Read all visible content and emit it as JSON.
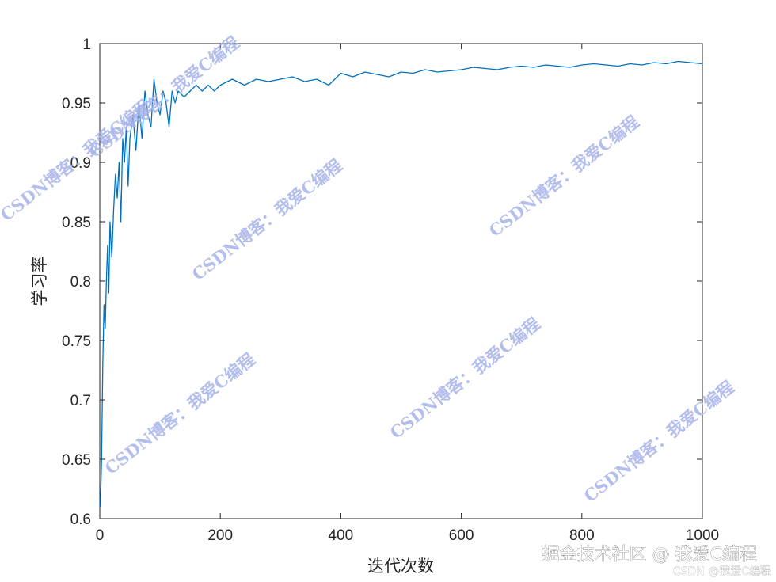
{
  "chart_data": {
    "type": "line",
    "title": "",
    "xlabel": "迭代次数",
    "ylabel": "学习率",
    "xlim": [
      0,
      1000
    ],
    "ylim": [
      0.6,
      1
    ],
    "xticks": [
      0,
      200,
      400,
      600,
      800,
      1000
    ],
    "yticks": [
      0.6,
      0.65,
      0.7,
      0.75,
      0.8,
      0.85,
      0.9,
      0.95,
      1
    ],
    "grid": false,
    "series": [
      {
        "color": "#0072BD",
        "x": [
          1,
          3,
          5,
          7,
          9,
          11,
          13,
          15,
          17,
          20,
          23,
          26,
          29,
          32,
          35,
          38,
          41,
          44,
          47,
          50,
          55,
          60,
          65,
          70,
          75,
          80,
          85,
          90,
          95,
          100,
          105,
          110,
          115,
          120,
          125,
          130,
          140,
          150,
          160,
          170,
          180,
          190,
          200,
          220,
          240,
          260,
          280,
          300,
          320,
          340,
          360,
          380,
          400,
          420,
          440,
          460,
          480,
          500,
          520,
          540,
          560,
          580,
          600,
          620,
          640,
          660,
          680,
          700,
          720,
          740,
          760,
          780,
          800,
          820,
          840,
          860,
          880,
          900,
          920,
          940,
          960,
          980,
          1000
        ],
        "values": [
          0.61,
          0.65,
          0.73,
          0.78,
          0.76,
          0.8,
          0.83,
          0.79,
          0.85,
          0.82,
          0.86,
          0.89,
          0.87,
          0.9,
          0.85,
          0.92,
          0.9,
          0.93,
          0.88,
          0.92,
          0.94,
          0.91,
          0.95,
          0.92,
          0.96,
          0.94,
          0.93,
          0.97,
          0.95,
          0.94,
          0.96,
          0.95,
          0.93,
          0.96,
          0.95,
          0.96,
          0.955,
          0.96,
          0.965,
          0.96,
          0.965,
          0.96,
          0.965,
          0.97,
          0.965,
          0.97,
          0.968,
          0.97,
          0.972,
          0.968,
          0.97,
          0.965,
          0.975,
          0.972,
          0.976,
          0.974,
          0.972,
          0.976,
          0.975,
          0.978,
          0.976,
          0.977,
          0.978,
          0.98,
          0.979,
          0.978,
          0.98,
          0.981,
          0.98,
          0.982,
          0.981,
          0.98,
          0.982,
          0.983,
          0.982,
          0.981,
          0.983,
          0.982,
          0.984,
          0.983,
          0.985,
          0.984,
          0.983
        ]
      }
    ]
  },
  "watermarks": [
    {
      "text": "CSDN博客：我爱C编程"
    },
    {
      "text": "CSDN博客：我爱C编程"
    },
    {
      "text": "CSDN博客：我爱C编程"
    },
    {
      "text": "CSDN博客：我爱C编程"
    },
    {
      "text": "CSDN博客：我爱C编程"
    },
    {
      "text": "CSDN博客：我爱C编程"
    },
    {
      "text": "CSDN博客：我爱C编程"
    }
  ],
  "footer": {
    "main": "掘金技术社区 @ 我爱C编程",
    "sub": "CSDN @我爱C编程"
  }
}
